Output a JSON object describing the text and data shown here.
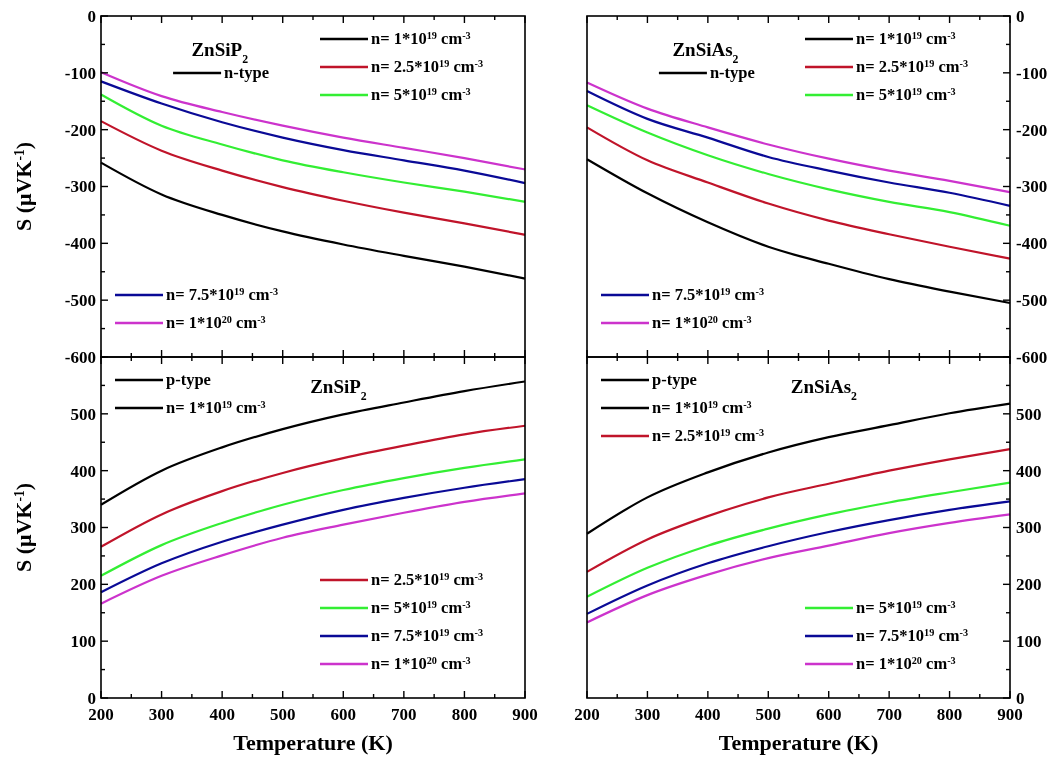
{
  "chart_data": [
    {
      "type": "line",
      "title": "ZnSiP$_{2}$",
      "ylabel": "S (μVK$^{-1}$)",
      "annotations": [
        "n-type"
      ],
      "legend": "top right",
      "tick_labels": "y",
      "x": [
        200,
        300,
        400,
        500,
        600,
        700,
        800,
        900
      ],
      "xlim": [
        200,
        900
      ],
      "xticks": [
        200,
        {
          "value": 250,
          "label": null
        },
        300,
        {
          "value": 350,
          "label": null
        },
        400,
        {
          "value": 450,
          "label": null
        },
        500,
        {
          "value": 550,
          "label": null
        },
        600,
        {
          "value": 650,
          "label": null
        },
        700,
        {
          "value": 750,
          "label": null
        },
        800,
        {
          "value": 850,
          "label": null
        },
        900
      ],
      "ylim": [
        -600,
        0
      ],
      "yticks": [
        -600,
        {
          "value": -550,
          "label": null
        },
        -500,
        {
          "value": -450,
          "label": null
        },
        -400,
        {
          "value": -350,
          "label": null
        },
        -300,
        {
          "value": -250,
          "label": null
        },
        -200,
        {
          "value": -150,
          "label": null
        },
        -100,
        {
          "value": -50,
          "label": null
        },
        0
      ],
      "series": [
        {
          "name": "n= 1*10$^{19}$ cm$^{-3}$",
          "color": "#000000",
          "values": [
            -258,
            -314,
            -350,
            -379,
            -402,
            -422,
            -441,
            -462
          ]
        },
        {
          "name": "n= 2.5*10$^{19}$ cm$^{-3}$",
          "color": "#c0142a",
          "values": [
            -185,
            -237,
            -272,
            -301,
            -325,
            -346,
            -365,
            -385
          ]
        },
        {
          "name": "n= 5*10$^{19}$ cm$^{-3}$",
          "color": "#33ee33",
          "values": [
            -138,
            -193,
            -226,
            -254,
            -275,
            -293,
            -309,
            -327
          ]
        },
        {
          "name": "n= 7.5*10$^{19}$ cm$^{-3}$",
          "color": "#0a0a96",
          "values": [
            -115,
            -154,
            -187,
            -214,
            -236,
            -254,
            -272,
            -294
          ]
        },
        {
          "name": "n= 1*10$^{20}$ cm$^{-3}$",
          "color": "#cc33cc",
          "values": [
            -99,
            -141,
            -169,
            -193,
            -214,
            -232,
            -250,
            -270
          ]
        }
      ]
    },
    {
      "type": "line",
      "title": "ZnSiAs$_{2}$",
      "annotations": [
        "n-type"
      ],
      "legend": "top right",
      "tick_labels": "y",
      "x": [
        200,
        300,
        400,
        500,
        600,
        700,
        800,
        900
      ],
      "xlim": [
        200,
        900
      ],
      "xticks": [
        200,
        {
          "value": 250,
          "label": null
        },
        300,
        {
          "value": 350,
          "label": null
        },
        400,
        {
          "value": 450,
          "label": null
        },
        500,
        {
          "value": 550,
          "label": null
        },
        600,
        {
          "value": 650,
          "label": null
        },
        700,
        {
          "value": 750,
          "label": null
        },
        800,
        {
          "value": 850,
          "label": null
        },
        900
      ],
      "ylim": [
        -600,
        0
      ],
      "yticks": [
        -600,
        {
          "value": -550,
          "label": null
        },
        -500,
        {
          "value": -450,
          "label": null
        },
        -400,
        {
          "value": -350,
          "label": null
        },
        -300,
        {
          "value": -250,
          "label": null
        },
        -200,
        {
          "value": -150,
          "label": null
        },
        -100,
        {
          "value": -50,
          "label": null
        },
        0
      ],
      "series": [
        {
          "name": "n= 1*10$^{19}$ cm$^{-3}$",
          "color": "#000000",
          "values": [
            -252,
            -312,
            -363,
            -406,
            -436,
            -463,
            -485,
            -505
          ]
        },
        {
          "name": "n= 2.5*10$^{19}$ cm$^{-3}$",
          "color": "#c0142a",
          "values": [
            -196,
            -254,
            -293,
            -330,
            -360,
            -384,
            -406,
            -427
          ]
        },
        {
          "name": "n= 5*10$^{19}$ cm$^{-3}$",
          "color": "#33ee33",
          "values": [
            -157,
            -205,
            -245,
            -278,
            -305,
            -327,
            -345,
            -369
          ]
        },
        {
          "name": "n= 7.5*10$^{19}$ cm$^{-3}$",
          "color": "#0a0a96",
          "values": [
            -132,
            -181,
            -214,
            -248,
            -272,
            -293,
            -311,
            -334
          ]
        },
        {
          "name": "n= 1*10$^{20}$ cm$^{-3}$",
          "color": "#cc33cc",
          "values": [
            -117,
            -163,
            -196,
            -226,
            -251,
            -272,
            -290,
            -310
          ]
        }
      ]
    },
    {
      "type": "line",
      "title": "ZnSiP$_{2}$",
      "xlabel": "Temperature (K)",
      "ylabel": "S (μVK$^{-1}$)",
      "annotations": [
        "p-type"
      ],
      "legend": "top left",
      "x": [
        200,
        300,
        400,
        500,
        600,
        700,
        800,
        900
      ],
      "xlim": [
        200,
        900
      ],
      "xticks": [
        200,
        {
          "value": 250,
          "label": null
        },
        300,
        {
          "value": 350,
          "label": null
        },
        400,
        {
          "value": 450,
          "label": null
        },
        500,
        {
          "value": 550,
          "label": null
        },
        600,
        {
          "value": 650,
          "label": null
        },
        700,
        {
          "value": 750,
          "label": null
        },
        800,
        {
          "value": 850,
          "label": null
        },
        900
      ],
      "ylim": [
        0,
        600
      ],
      "yticks": [
        0,
        {
          "value": 50,
          "label": null
        },
        100,
        {
          "value": 150,
          "label": null
        },
        200,
        {
          "value": 250,
          "label": null
        },
        300,
        {
          "value": 350,
          "label": null
        },
        400,
        {
          "value": 450,
          "label": null
        },
        500,
        {
          "value": 550,
          "label": null
        },
        {
          "value": 600,
          "label": null
        }
      ],
      "series": [
        {
          "name": "n= 1*10$^{19}$ cm$^{-3}$",
          "color": "#000000",
          "values": [
            340,
            400,
            441,
            473,
            499,
            520,
            540,
            557
          ]
        },
        {
          "name": "n= 2.5*10$^{19}$ cm$^{-3}$",
          "color": "#c0142a",
          "values": [
            266,
            323,
            364,
            396,
            422,
            444,
            464,
            479
          ]
        },
        {
          "name": "n= 5*10$^{19}$ cm$^{-3}$",
          "color": "#33ee33",
          "values": [
            215,
            269,
            308,
            340,
            366,
            387,
            405,
            420
          ]
        },
        {
          "name": "n= 7.5*10$^{19}$ cm$^{-3}$",
          "color": "#0a0a96",
          "values": [
            186,
            237,
            275,
            305,
            331,
            352,
            370,
            385
          ]
        },
        {
          "name": "n= 1*10$^{20}$ cm$^{-3}$",
          "color": "#cc33cc",
          "values": [
            166,
            215,
            251,
            282,
            305,
            326,
            345,
            360
          ]
        }
      ]
    },
    {
      "type": "line",
      "title": "ZnSiAs$_{2}$",
      "xlabel": "Temperature (K)",
      "annotations": [
        "p-type"
      ],
      "legend": "top left",
      "x": [
        200,
        300,
        400,
        500,
        600,
        700,
        800,
        900
      ],
      "xlim": [
        200,
        900
      ],
      "xticks": [
        200,
        {
          "value": 250,
          "label": null
        },
        300,
        {
          "value": 350,
          "label": null
        },
        400,
        {
          "value": 450,
          "label": null
        },
        500,
        {
          "value": 550,
          "label": null
        },
        600,
        {
          "value": 650,
          "label": null
        },
        700,
        {
          "value": 750,
          "label": null
        },
        800,
        {
          "value": 850,
          "label": null
        },
        900
      ],
      "ylim": [
        0,
        600
      ],
      "yticks": [
        0,
        {
          "value": 50,
          "label": null
        },
        100,
        {
          "value": 150,
          "label": null
        },
        200,
        {
          "value": 250,
          "label": null
        },
        300,
        {
          "value": 350,
          "label": null
        },
        400,
        {
          "value": 450,
          "label": null
        },
        500,
        {
          "value": 550,
          "label": null
        },
        {
          "value": 600,
          "label": null
        }
      ],
      "series": [
        {
          "name": "n= 1*10$^{19}$ cm$^{-3}$",
          "color": "#000000",
          "values": [
            289,
            353,
            397,
            432,
            459,
            480,
            501,
            518
          ]
        },
        {
          "name": "n= 2.5*10$^{19}$ cm$^{-3}$",
          "color": "#c0142a",
          "values": [
            222,
            279,
            320,
            353,
            377,
            400,
            420,
            438
          ]
        },
        {
          "name": "n= 5*10$^{19}$ cm$^{-3}$",
          "color": "#33ee33",
          "values": [
            178,
            229,
            268,
            298,
            323,
            344,
            362,
            379
          ]
        },
        {
          "name": "n= 7.5*10$^{19}$ cm$^{-3}$",
          "color": "#0a0a96",
          "values": [
            148,
            198,
            237,
            267,
            292,
            313,
            331,
            346
          ]
        },
        {
          "name": "n= 1*10$^{20}$ cm$^{-3}$",
          "color": "#cc33cc",
          "values": [
            133,
            181,
            217,
            246,
            268,
            290,
            308,
            323
          ]
        }
      ]
    }
  ]
}
